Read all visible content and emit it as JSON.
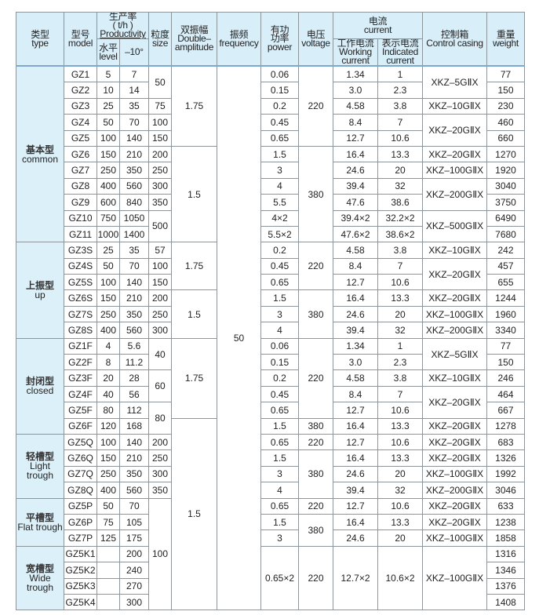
{
  "header": {
    "type": {
      "zh": "类型",
      "en": "type"
    },
    "model": {
      "zh": "型号",
      "en": "model"
    },
    "productivity": {
      "zh": "生产率",
      "unit": "( t/h )",
      "en": "Productivity"
    },
    "level": {
      "zh": "水平",
      "en": "level"
    },
    "minus10": "–10°",
    "size": {
      "zh": "粒度",
      "en": "size"
    },
    "amplitude": {
      "zh": "双振幅",
      "en1": "Double–",
      "en2": "amplitude"
    },
    "frequency": {
      "zh": "振频",
      "en": "frequency"
    },
    "power": {
      "zh1": "有功",
      "zh2": "功率",
      "en": "power"
    },
    "voltage": {
      "zh": "电压",
      "en": "voltage"
    },
    "current": {
      "zh": "电流",
      "en": "current"
    },
    "working": {
      "zh": "工作电流",
      "en1": "Working",
      "en2": "current"
    },
    "indicated": {
      "zh": "表示电流",
      "en1": "Indicated",
      "en2": "current"
    },
    "control": {
      "zh": "控制箱",
      "en": "Control casing"
    },
    "weight": {
      "zh": "重量",
      "en": "weight"
    }
  },
  "rows": [
    [
      {
        "v": "基本型",
        "en": "common",
        "rs": 11,
        "type": 1
      },
      "GZ1",
      "5",
      "7",
      {
        "v": "50",
        "rs": 2
      },
      {
        "v": "1.75",
        "rs": 5
      },
      {
        "v": "50",
        "rs": 34
      },
      "0.06",
      {
        "v": "220",
        "rs": 5
      },
      "1.34",
      "1",
      {
        "v": "XKZ–5GⅡX",
        "rs": 2
      },
      "77"
    ],
    [
      "GZ2",
      "10",
      "14",
      "0.15",
      "3.0",
      "2.3",
      "150"
    ],
    [
      "GZ3",
      "25",
      "35",
      "75",
      "0.2",
      "4.58",
      "3.8",
      "XKZ–10GⅡX",
      "230"
    ],
    [
      "GZ4",
      "50",
      "70",
      "100",
      "0.45",
      "8.4",
      "7",
      {
        "v": "XKZ–20GⅡX",
        "rs": 2
      },
      "460"
    ],
    [
      "GZ5",
      "100",
      "140",
      "150",
      "0.65",
      "12.7",
      "10.6",
      "660"
    ],
    [
      "GZ6",
      "150",
      "210",
      "200",
      {
        "v": "1.5",
        "rs": 6
      },
      "1.5",
      {
        "v": "380",
        "rs": 6
      },
      "16.4",
      "13.3",
      "XKZ–20GⅡX",
      "1270"
    ],
    [
      "GZ7",
      "250",
      "350",
      "250",
      "3",
      "24.6",
      "20",
      "XKZ–100GⅡX",
      "1920"
    ],
    [
      "GZ8",
      "400",
      "560",
      "300",
      "4",
      "39.4",
      "32",
      {
        "v": "XKZ–200GⅡX",
        "rs": 2
      },
      "3040"
    ],
    [
      "GZ9",
      "600",
      "840",
      "350",
      "5.5",
      "47.6",
      "38.6",
      "3750"
    ],
    [
      "GZ10",
      "750",
      "1050",
      {
        "v": "500",
        "rs": 2
      },
      "4×2",
      "39.4×2",
      "32.2×2",
      {
        "v": "XKZ–500GⅡX",
        "rs": 2
      },
      "6490"
    ],
    [
      "GZ11",
      "1000",
      "1400",
      "5.5×2",
      "47.6×2",
      "38.6×2",
      "7680"
    ],
    [
      {
        "v": "上振型",
        "en": "up",
        "rs": 6,
        "type": 1
      },
      "GZ3S",
      "25",
      "35",
      "57",
      {
        "v": "1.75",
        "rs": 3
      },
      "0.2",
      {
        "v": "220",
        "rs": 3
      },
      "4.58",
      "3.8",
      "XKZ–10GⅡX",
      "242"
    ],
    [
      "GZ4S",
      "50",
      "70",
      "100",
      "0.45",
      "8.4",
      "7",
      {
        "v": "XKZ–20GⅡX",
        "rs": 2
      },
      "457"
    ],
    [
      "GZ5S",
      "100",
      "140",
      "150",
      "0.65",
      "12.7",
      "10.6",
      "655"
    ],
    [
      "GZ6S",
      "150",
      "210",
      "200",
      {
        "v": "1.5",
        "rs": 3
      },
      "1.5",
      {
        "v": "380",
        "rs": 3
      },
      "16.4",
      "13.3",
      "XKZ–20GⅡX",
      "1244"
    ],
    [
      "GZ7S",
      "250",
      "350",
      "250",
      "3",
      "24.6",
      "20",
      "XKZ–100GⅡX",
      "1960"
    ],
    [
      "GZ8S",
      "400",
      "560",
      "300",
      "4",
      "39.4",
      "32",
      "XKZ–200GⅡX",
      "3340"
    ],
    [
      {
        "v": "封闭型",
        "en": "closed",
        "rs": 6,
        "type": 1
      },
      "GZ1F",
      "4",
      "5.6",
      {
        "v": "40",
        "rs": 2
      },
      {
        "v": "1.75",
        "rs": 5
      },
      "0.06",
      {
        "v": "220",
        "rs": 5
      },
      "1.34",
      "1",
      {
        "v": "XKZ–5GⅡX",
        "rs": 2
      },
      "77"
    ],
    [
      "GZ2F",
      "8",
      "11.2",
      "0.15",
      "3.0",
      "2.3",
      "150"
    ],
    [
      "GZ3F",
      "20",
      "28",
      {
        "v": "60",
        "rs": 2
      },
      "0.2",
      "4.58",
      "3.8",
      "XKZ–10GⅡX",
      "246"
    ],
    [
      "GZ4F",
      "40",
      "56",
      "0.45",
      "8.4",
      "7",
      {
        "v": "XKZ–20GⅡX",
        "rs": 2
      },
      "464"
    ],
    [
      "GZ5F",
      "80",
      "112",
      {
        "v": "80",
        "rs": 2
      },
      "0.65",
      "12.7",
      "10.6",
      "667"
    ],
    [
      "GZ6F",
      "120",
      "168",
      {
        "v": "1.5",
        "rs": 12
      },
      "1.5",
      "380",
      "16.4",
      "13.3",
      "XKZ–20GⅡX",
      "1278"
    ],
    [
      {
        "v": "轻槽型",
        "en": "Light trough",
        "rs": 4,
        "type": 1
      },
      "GZ5Q",
      "100",
      "140",
      "200",
      "0.65",
      "220",
      "12.7",
      "10.6",
      "XKZ–20GⅡX",
      "683"
    ],
    [
      "GZ6Q",
      "150",
      "210",
      "250",
      "1.5",
      {
        "v": "380",
        "rs": 3
      },
      "16.4",
      "13.3",
      "XKZ–20GⅡX",
      "1326"
    ],
    [
      "GZ7Q",
      "250",
      "350",
      "300",
      "3",
      "24.6",
      "20",
      "XKZ–100GⅡX",
      "1992"
    ],
    [
      "GZ8Q",
      "400",
      "560",
      "350",
      "4",
      "39.4",
      "32",
      "XKZ–200GⅡX",
      "3046"
    ],
    [
      {
        "v": "平槽型",
        "en": "Flat trough",
        "rs": 3,
        "type": 1
      },
      "GZ5P",
      "50",
      "70",
      {
        "v": "100",
        "rs": 7
      },
      "0.65",
      "220",
      "12.7",
      "10.6",
      "XKZ–20GⅡX",
      "633"
    ],
    [
      "GZ6P",
      "75",
      "105",
      "1.5",
      {
        "v": "380",
        "rs": 2
      },
      "16.4",
      "13.3",
      "XKZ–20GⅡX",
      "1238"
    ],
    [
      "GZ7P",
      "125",
      "175",
      "3",
      "24.6",
      "20",
      "XKZ–100GⅡX",
      "1858"
    ],
    [
      {
        "v": "宽槽型",
        "en": "Wide trough",
        "rs": 4,
        "type": 1
      },
      "GZ5K1",
      "",
      "200",
      {
        "v": "0.65×2",
        "rs": 4
      },
      {
        "v": "220",
        "rs": 4
      },
      {
        "v": "12.7×2",
        "rs": 4
      },
      {
        "v": "10.6×2",
        "rs": 4
      },
      {
        "v": "XKZ–100GⅡX",
        "rs": 4
      },
      "1316"
    ],
    [
      "GZ5K2",
      "",
      "240",
      "1346"
    ],
    [
      "GZ5K3",
      "",
      "270",
      "1376"
    ],
    [
      "GZ5K4",
      "",
      "300",
      "1408"
    ]
  ]
}
